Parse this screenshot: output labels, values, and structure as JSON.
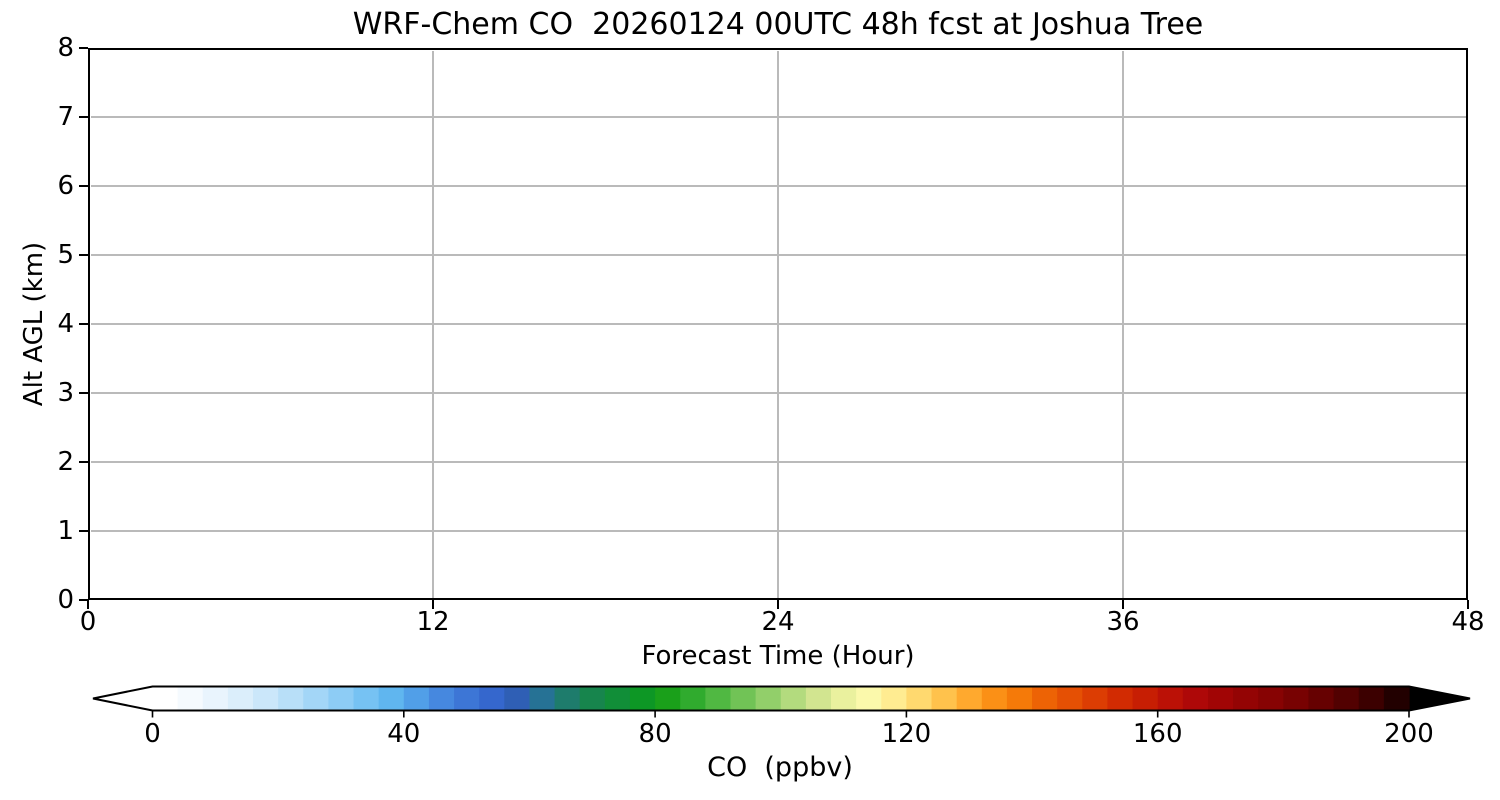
{
  "title": "WRF-Chem CO  20260124 00UTC 48h fcst at Joshua Tree",
  "chart_data": {
    "type": "heatmap",
    "title": "WRF-Chem CO  20260124 00UTC 48h fcst at Joshua Tree",
    "xlabel": "Forecast Time (Hour)",
    "ylabel": "Alt AGL (km)",
    "xlim": [
      0,
      48
    ],
    "ylim": [
      0,
      8
    ],
    "xticks": [
      0,
      12,
      24,
      36,
      48
    ],
    "yticks": [
      0,
      1,
      2,
      3,
      4,
      5,
      6,
      7,
      8
    ],
    "grid": true,
    "plot_area_empty": true,
    "values": [],
    "colorbar": {
      "label": "CO  (ppbv)",
      "orientation": "horizontal",
      "range": [
        0,
        200
      ],
      "ticks": [
        0,
        40,
        80,
        120,
        160,
        200
      ],
      "extend_min_color": "#ffffff",
      "extend_max_color": "#000000",
      "segment_colors": [
        "#ffffff",
        "#f5fafe",
        "#e9f4fd",
        "#dbeefb",
        "#cbe7fa",
        "#b8dff8",
        "#a3d6f7",
        "#8dccf5",
        "#76c2f3",
        "#60b6ef",
        "#519fe8",
        "#4688df",
        "#3d76d6",
        "#3567cd",
        "#2f5fb5",
        "#267295",
        "#1e7c6c",
        "#17854d",
        "#118e38",
        "#0d9725",
        "#1aa01a",
        "#30ab2e",
        "#50b842",
        "#71c356",
        "#92cf6a",
        "#b3db7e",
        "#d2e590",
        "#eaf19e",
        "#fbf9ab",
        "#ffec91",
        "#ffd96f",
        "#ffc24c",
        "#ffa92e",
        "#fb9016",
        "#f57a09",
        "#ed6305",
        "#e55004",
        "#dc3d03",
        "#d22b02",
        "#c71e03",
        "#bb1106",
        "#ae0808",
        "#a10505",
        "#940404",
        "#870303",
        "#780202",
        "#660101",
        "#520101",
        "#3c0000",
        "#220000"
      ]
    }
  },
  "colors": {
    "background": "#ffffff",
    "axis": "#000000",
    "grid": "#bababa",
    "text": "#000000"
  }
}
